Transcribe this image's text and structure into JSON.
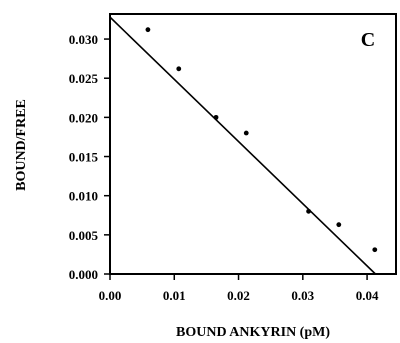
{
  "chart_data": {
    "type": "scatter",
    "panel_label": "C",
    "xlabel": "BOUND ANKYRIN (pM)",
    "ylabel": "BOUND/FREE",
    "xlim": [
      0.0,
      0.0445
    ],
    "ylim": [
      0.0,
      0.0332
    ],
    "x_ticks": [
      0.0,
      0.01,
      0.02,
      0.03,
      0.04
    ],
    "x_tick_labels": [
      "0.00",
      "0.01",
      "0.02",
      "0.03",
      "0.04"
    ],
    "y_ticks": [
      0.0,
      0.005,
      0.01,
      0.015,
      0.02,
      0.025,
      0.03
    ],
    "y_tick_labels": [
      "0.000",
      "0.005",
      "0.010",
      "0.015",
      "0.020",
      "0.025",
      "0.030"
    ],
    "grid": false,
    "points": [
      {
        "x": 0.0059,
        "y": 0.0312
      },
      {
        "x": 0.0107,
        "y": 0.0262
      },
      {
        "x": 0.0165,
        "y": 0.02
      },
      {
        "x": 0.0212,
        "y": 0.018
      },
      {
        "x": 0.0309,
        "y": 0.008
      },
      {
        "x": 0.0356,
        "y": 0.0063
      },
      {
        "x": 0.0412,
        "y": 0.0031
      }
    ],
    "fit_line": {
      "x": [
        0.0,
        0.0413
      ],
      "y": [
        0.0328,
        0.0
      ]
    }
  }
}
